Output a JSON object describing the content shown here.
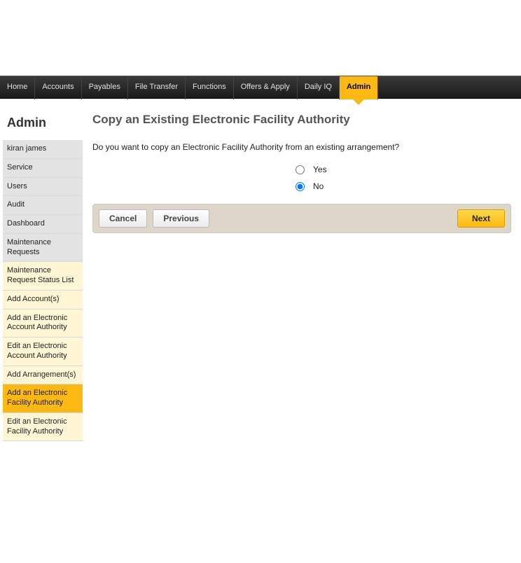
{
  "topnav": {
    "items": [
      {
        "label": "Home",
        "active": false
      },
      {
        "label": "Accounts",
        "active": false
      },
      {
        "label": "Payables",
        "active": false
      },
      {
        "label": "File Transfer",
        "active": false
      },
      {
        "label": "Functions",
        "active": false
      },
      {
        "label": "Offers & Apply",
        "active": false
      },
      {
        "label": "Daily IQ",
        "active": false
      },
      {
        "label": "Admin",
        "active": true
      }
    ]
  },
  "sidebar": {
    "title": "Admin",
    "items": [
      {
        "label": "kiran james",
        "variant": "grey"
      },
      {
        "label": "Service",
        "variant": "grey"
      },
      {
        "label": "Users",
        "variant": "grey"
      },
      {
        "label": "Audit",
        "variant": "grey"
      },
      {
        "label": "Dashboard",
        "variant": "grey"
      },
      {
        "label": "Maintenance Requests",
        "variant": "grey"
      },
      {
        "label": "Maintenance Request Status List",
        "variant": "cream"
      },
      {
        "label": "Add Account(s)",
        "variant": "cream"
      },
      {
        "label": "Add an Electronic Account Authority",
        "variant": "cream"
      },
      {
        "label": "Edit an Electronic Account Authority",
        "variant": "cream"
      },
      {
        "label": "Add Arrangement(s)",
        "variant": "cream"
      },
      {
        "label": "Add an Electronic Facility Authority",
        "variant": "active"
      },
      {
        "label": "Edit an Electronic Facility Authority",
        "variant": "cream"
      }
    ]
  },
  "main": {
    "title": "Copy an Existing Electronic Facility Authority",
    "question": "Do you want to copy an Electronic Facility Authority from an existing arrangement?",
    "options": {
      "yes": "Yes",
      "no": "No",
      "selected": "no"
    },
    "buttons": {
      "cancel": "Cancel",
      "previous": "Previous",
      "next": "Next"
    }
  },
  "colors": {
    "accent": "#fdb813",
    "nav_bg_top": "#3a3a3a",
    "nav_bg_bottom": "#1a1a1a",
    "sidebar_grey": "#e3e3e3",
    "sidebar_cream": "#fff6d6",
    "actionbar_bg": "#ddd6c9"
  }
}
